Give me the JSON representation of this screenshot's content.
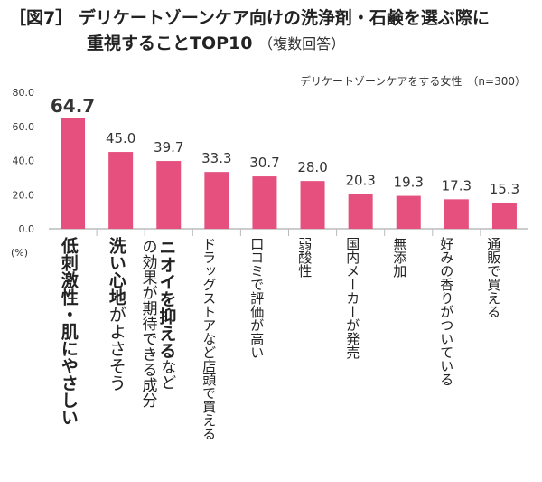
{
  "title": {
    "line1": "［図7］ デリケートゾーンケア向けの洗浄剤・石鹸を選ぶ際に",
    "line2": "重視することTOP10",
    "note": "（複数回答）"
  },
  "subset_label": "デリケートゾーンケアをする女性　（n=300）",
  "unit_label": "(%)",
  "chart_data": {
    "type": "bar",
    "categories": [
      "低刺激性・肌にやさしい",
      "洗い心地がよさそう",
      "ニオイを抑えるなどの効果が期待できる成分",
      "ドラッグストアなど店頭で買える",
      "口コミで評価が高い",
      "弱酸性",
      "国内メーカーが発売",
      "無添加",
      "好みの香りがついている",
      "通販で買える"
    ],
    "values": [
      64.7,
      45.0,
      39.7,
      33.3,
      30.7,
      28.0,
      20.3,
      19.3,
      17.3,
      15.3
    ],
    "value_labels": [
      "64.7",
      "45.0",
      "39.7",
      "33.3",
      "30.7",
      "28.0",
      "20.3",
      "19.3",
      "17.3",
      "15.3"
    ],
    "yticks": [
      "0.0",
      "20.0",
      "40.0",
      "60.0",
      "80.0"
    ],
    "ylim": [
      0,
      80
    ],
    "bar_color": "#E6507F",
    "grid": false
  }
}
